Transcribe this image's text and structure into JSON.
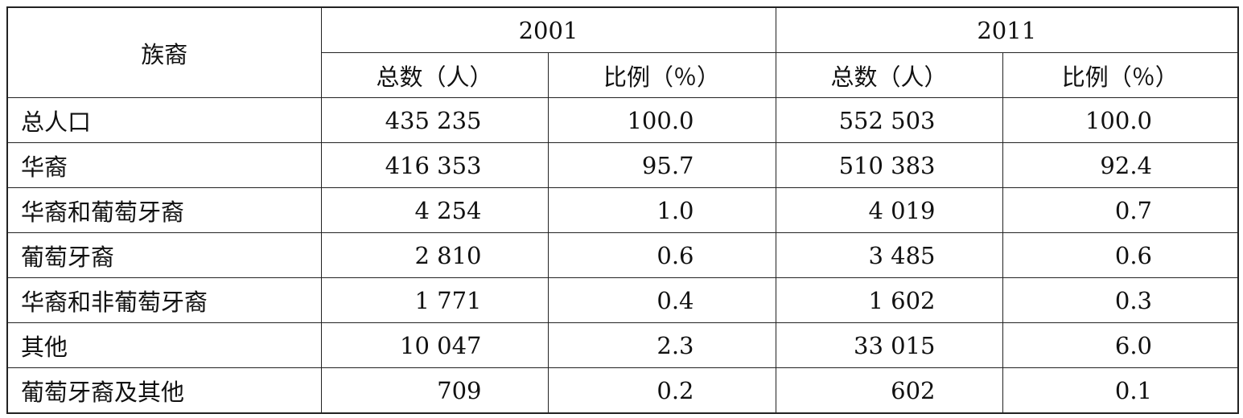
{
  "table": {
    "header": {
      "label": "族裔",
      "years": [
        "2001",
        "2011"
      ],
      "subheaders": [
        "总数（人）",
        "比例（％）",
        "总数（人）",
        "比例（％）"
      ]
    },
    "rows": [
      [
        "总人口",
        "435 235",
        "100.0",
        "552 503",
        "100.0"
      ],
      [
        "华裔",
        "416 353",
        "95.7",
        "510 383",
        "92.4"
      ],
      [
        "华裔和葡萄牙裔",
        "4 254",
        "1.0",
        "4 019",
        "0.7"
      ],
      [
        "葡萄牙裔",
        "2 810",
        "0.6",
        "3 485",
        "0.6"
      ],
      [
        "华裔和非葡萄牙裔",
        "1 771",
        "0.4",
        "1 602",
        "0.3"
      ],
      [
        "其他",
        "10 047",
        "2.3",
        "33 015",
        "6.0"
      ],
      [
        "葡萄牙裔及其他",
        "709",
        "0.2",
        "602",
        "0.1"
      ]
    ]
  }
}
